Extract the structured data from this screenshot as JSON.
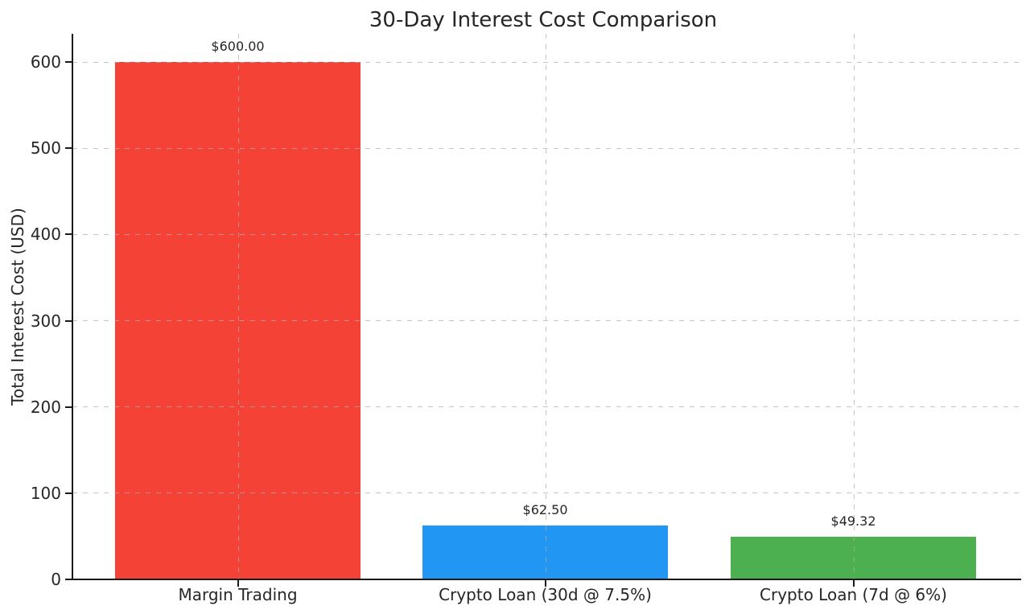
{
  "chart_data": {
    "type": "bar",
    "title": "30-Day Interest Cost Comparison",
    "ylabel": "Total Interest Cost (USD)",
    "xlabel": "",
    "categories": [
      "Margin Trading",
      "Crypto Loan (30d @ 7.5%)",
      "Crypto Loan (7d @ 6%)"
    ],
    "values": [
      600.0,
      62.5,
      49.32
    ],
    "value_labels": [
      "$600.00",
      "$62.50",
      "$49.32"
    ],
    "bar_colors": [
      "#f44336",
      "#2196f3",
      "#4caf50"
    ],
    "yticks": [
      0,
      100,
      200,
      300,
      400,
      500,
      600
    ],
    "ylim": [
      0,
      633
    ],
    "grid": {
      "show": true,
      "axis": "both",
      "style": "dashed",
      "color": "#cccccc",
      "drawn_over_bars": true
    },
    "legend": "none"
  },
  "style_colors": {
    "text": "#262626",
    "spine": "#1a1a1a",
    "grid": "#cccccc",
    "background": "#ffffff"
  }
}
